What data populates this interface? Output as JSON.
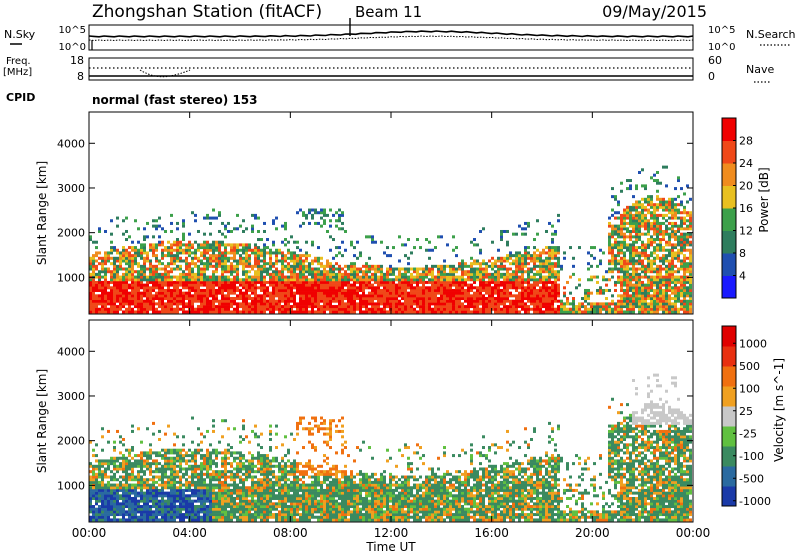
{
  "header": {
    "station": "Zhongshan Station (fitACF)",
    "beam": "Beam 11",
    "date": "09/May/2015",
    "cpid_label": "CPID",
    "cpid_value": "normal (fast stereo) 153"
  },
  "top_panels": {
    "nsky_label": "N.Sky",
    "nsky_ticks": [
      "10^5",
      "10^0"
    ],
    "nsearch_label": "N.Search",
    "nsearch_ticks": [
      "10^5",
      "10^0"
    ],
    "freq_label_line1": "Freq.",
    "freq_label_line2": "[MHz]",
    "freq_ticks": [
      "18",
      "8"
    ],
    "nave_label": "Nave",
    "nave_ticks": [
      "60",
      "0"
    ]
  },
  "chart_data": [
    {
      "type": "heatmap",
      "name": "Power",
      "ylabel": "Slant Range [km]",
      "yticks": [
        1000,
        2000,
        3000,
        4000
      ],
      "ylim": [
        180,
        4700
      ],
      "colorbar": {
        "label": "Power [dB]",
        "ticks": [
          "4",
          "8",
          "12",
          "16",
          "20",
          "24",
          "28"
        ],
        "colors": [
          "#1a1aff",
          "#1f4fb0",
          "#2e7d5e",
          "#3ca04a",
          "#e8c020",
          "#f08c1e",
          "#f04818",
          "#f00000"
        ]
      }
    },
    {
      "type": "heatmap",
      "name": "Velocity",
      "ylabel": "Slant Range [km]",
      "yticks": [
        1000,
        2000,
        3000,
        4000
      ],
      "ylim": [
        180,
        4700
      ],
      "colorbar": {
        "label": "Velocity [m s^-1]",
        "ticks": [
          "1000",
          "500",
          "100",
          "25",
          "-25",
          "-100",
          "-500",
          "-1000"
        ],
        "colors": [
          "#1a3aa8",
          "#2a6aa0",
          "#3a8a60",
          "#60c040",
          "#c8c8c8",
          "#f0a020",
          "#f07010",
          "#e83010",
          "#e00000"
        ]
      }
    }
  ],
  "xaxis": {
    "label": "Time UT",
    "ticks": [
      "00:00",
      "04:00",
      "08:00",
      "12:00",
      "16:00",
      "20:00",
      "00:00"
    ]
  }
}
